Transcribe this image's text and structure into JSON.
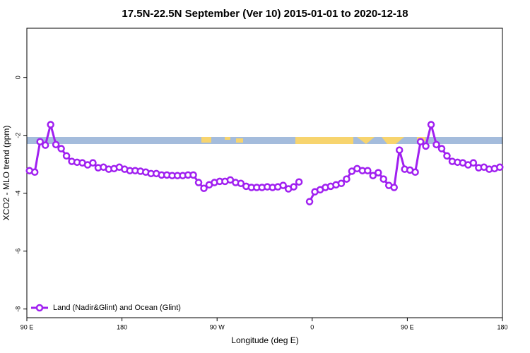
{
  "chart_data": {
    "type": "line",
    "title": "17.5N-22.5N September (Ver 10)   2015-01-01 to 2020-12-18",
    "x_label": "Longitude (deg E)",
    "y_label": "XCO2 - MLO trend (ppm)",
    "xlim": [
      90,
      540
    ],
    "ylim": [
      -8.3,
      1.7
    ],
    "xticks": [
      {
        "value": 90,
        "label": "90 E"
      },
      180,
      {
        "value": 270,
        "label": "90 W"
      },
      {
        "value": 360,
        "label": "0"
      },
      {
        "value": 450,
        "label": "90 E"
      },
      {
        "value": 540,
        "label": "180"
      }
    ],
    "yticks": [
      0,
      -2,
      -4,
      -6,
      -8
    ],
    "legend": "bottom-left",
    "x": [
      92.5,
      97.5,
      102.5,
      107.5,
      112.5,
      117.5,
      122.5,
      127.5,
      132.5,
      137.5,
      142.5,
      147.5,
      152.5,
      157.5,
      162.5,
      167.5,
      172.5,
      177.5,
      182.5,
      187.5,
      192.5,
      197.5,
      202.5,
      207.5,
      212.5,
      217.5,
      222.5,
      227.5,
      232.5,
      237.5,
      242.5,
      247.5,
      252.5,
      257.5,
      262.5,
      267.5,
      272.5,
      277.5,
      282.5,
      287.5,
      292.5,
      297.5,
      302.5,
      307.5,
      312.5,
      317.5,
      322.5,
      327.5,
      332.5,
      337.5,
      342.5,
      347.5,
      352.5,
      357.5,
      362.5,
      367.5,
      372.5,
      377.5,
      382.5,
      387.5,
      392.5,
      397.5,
      402.5,
      407.5,
      412.5,
      417.5,
      422.5,
      427.5,
      432.5,
      437.5,
      442.5,
      447.5,
      452.5,
      457.5,
      462.5,
      467.5,
      472.5,
      477.5,
      482.5,
      487.5,
      492.5,
      497.5,
      502.5,
      507.5,
      512.5,
      517.5,
      522.5,
      527.5,
      532.5,
      537.5
    ],
    "series": [
      {
        "name": "Land (Nadir&Glint) and Ocean (Glint)",
        "color": "#a020f0",
        "values": [
          -3.22,
          -3.27,
          -2.22,
          -2.34,
          -1.63,
          -2.32,
          -2.46,
          -2.71,
          -2.9,
          -2.93,
          -2.95,
          -3.02,
          -2.95,
          -3.12,
          -3.1,
          -3.17,
          -3.15,
          -3.1,
          -3.17,
          -3.22,
          -3.22,
          -3.24,
          -3.27,
          -3.32,
          -3.32,
          -3.37,
          -3.37,
          -3.39,
          -3.39,
          -3.39,
          -3.37,
          -3.37,
          -3.63,
          -3.83,
          -3.71,
          -3.63,
          -3.59,
          -3.59,
          -3.54,
          -3.63,
          -3.66,
          -3.76,
          -3.8,
          -3.8,
          -3.8,
          -3.78,
          -3.8,
          -3.78,
          -3.73,
          -3.85,
          -3.78,
          -3.61,
          null,
          -4.29,
          -3.95,
          -3.88,
          -3.8,
          -3.76,
          -3.71,
          -3.66,
          -3.51,
          -3.24,
          -3.15,
          -3.22,
          -3.22,
          -3.39,
          -3.29,
          -3.51,
          -3.73,
          -3.8,
          -2.51,
          -3.17,
          -3.2,
          -3.27,
          -2.22,
          -2.37,
          -1.63,
          -2.32,
          -2.46,
          -2.71,
          -2.9,
          -2.93,
          -2.95,
          -3.02,
          -2.95,
          -3.12,
          -3.1,
          -3.17,
          -3.15,
          -3.1
        ]
      }
    ]
  }
}
